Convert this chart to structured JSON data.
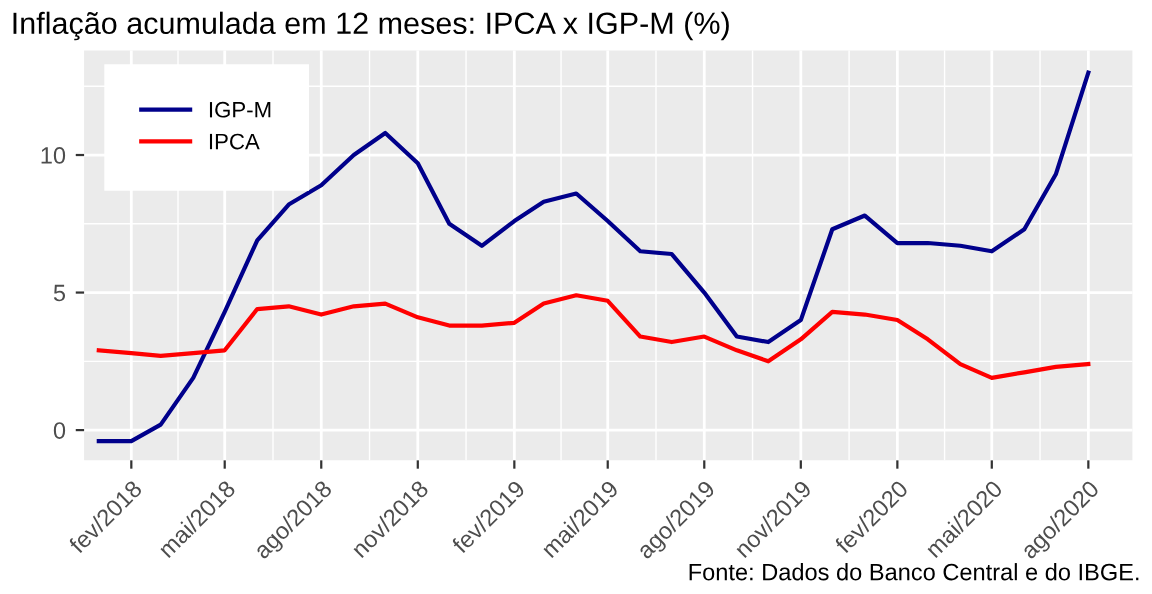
{
  "chart_data": {
    "type": "line",
    "title": "Inflação acumulada em 12 meses: IPCA x IGP-M (%)",
    "x": [
      "2018-01",
      "2018-02",
      "2018-03",
      "2018-04",
      "2018-05",
      "2018-06",
      "2018-07",
      "2018-08",
      "2018-09",
      "2018-10",
      "2018-11",
      "2018-12",
      "2019-01",
      "2019-02",
      "2019-03",
      "2019-04",
      "2019-05",
      "2019-06",
      "2019-07",
      "2019-08",
      "2019-09",
      "2019-10",
      "2019-11",
      "2019-12",
      "2020-01",
      "2020-02",
      "2020-03",
      "2020-04",
      "2020-05",
      "2020-06",
      "2020-07",
      "2020-08"
    ],
    "series": [
      {
        "name": "IGP-M",
        "color": "#00008b",
        "values": [
          -0.4,
          -0.4,
          0.2,
          1.9,
          4.3,
          6.9,
          8.2,
          8.9,
          10.0,
          10.8,
          9.7,
          7.5,
          6.7,
          7.6,
          8.3,
          8.6,
          7.6,
          6.5,
          6.4,
          5.0,
          3.4,
          3.2,
          4.0,
          7.3,
          7.8,
          6.8,
          6.8,
          6.7,
          6.5,
          7.3,
          9.3,
          13.0
        ]
      },
      {
        "name": "IPCA",
        "color": "#ff0000",
        "values": [
          2.9,
          2.8,
          2.7,
          2.8,
          2.9,
          4.4,
          4.5,
          4.2,
          4.5,
          4.6,
          4.1,
          3.8,
          3.8,
          3.9,
          4.6,
          4.9,
          4.7,
          3.4,
          3.2,
          3.4,
          2.9,
          2.5,
          3.3,
          4.3,
          4.2,
          4.0,
          3.3,
          2.4,
          1.9,
          2.1,
          2.3,
          2.4
        ]
      }
    ],
    "xlim": [
      "2017-12-18",
      "2020-09-12"
    ],
    "xticks": [
      {
        "value": "2018-02",
        "label": "fev/2018"
      },
      {
        "value": "2018-05",
        "label": "mai/2018"
      },
      {
        "value": "2018-08",
        "label": "ago/2018"
      },
      {
        "value": "2018-11",
        "label": "nov/2018"
      },
      {
        "value": "2019-02",
        "label": "fev/2019"
      },
      {
        "value": "2019-05",
        "label": "mai/2019"
      },
      {
        "value": "2019-08",
        "label": "ago/2019"
      },
      {
        "value": "2019-11",
        "label": "nov/2019"
      },
      {
        "value": "2020-02",
        "label": "fev/2020"
      },
      {
        "value": "2020-05",
        "label": "mai/2020"
      },
      {
        "value": "2020-08",
        "label": "ago/2020"
      }
    ],
    "ylim": [
      -1.1,
      13.8
    ],
    "yticks": [
      0,
      5,
      10
    ],
    "grid": true,
    "legend": "top left",
    "line_style": "solid",
    "marker": "none",
    "annotations": [
      "Fonte: Dados do Banco Central e do IBGE."
    ]
  }
}
